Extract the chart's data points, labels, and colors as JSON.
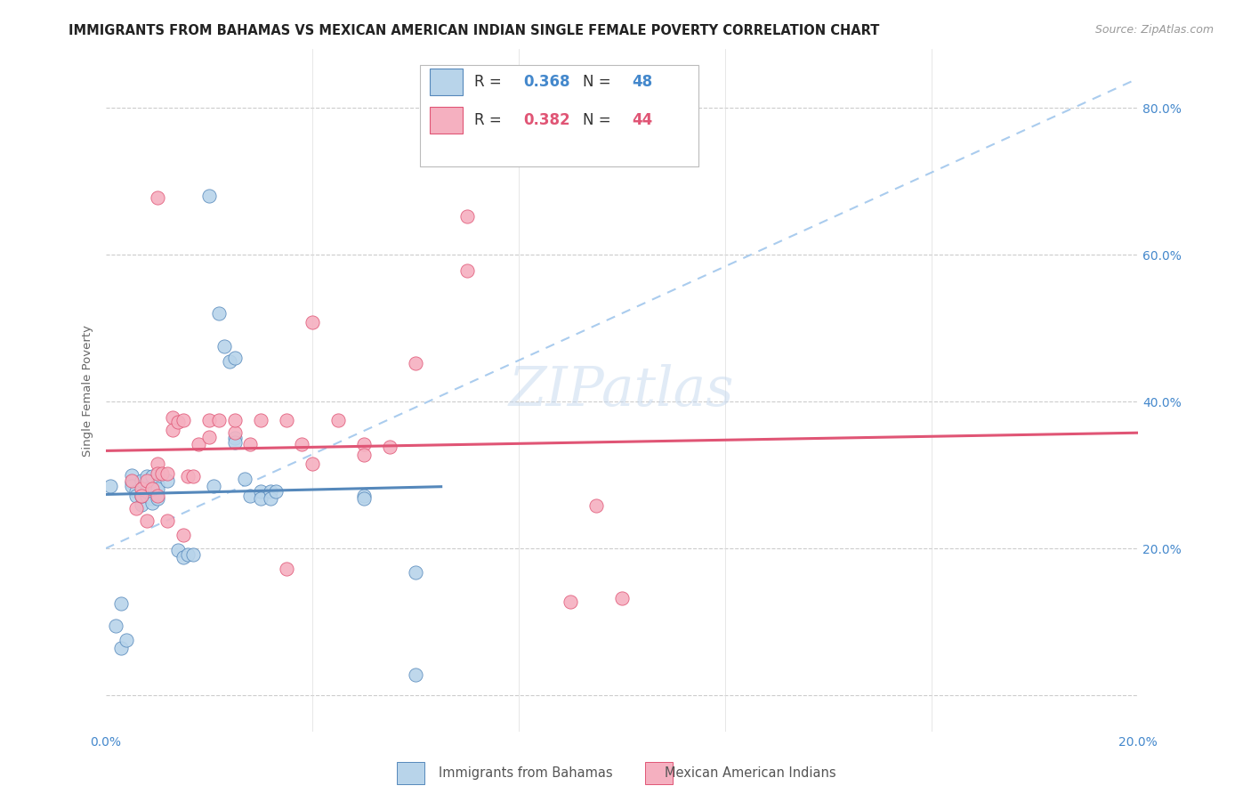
{
  "title": "IMMIGRANTS FROM BAHAMAS VS MEXICAN AMERICAN INDIAN SINGLE FEMALE POVERTY CORRELATION CHART",
  "source": "Source: ZipAtlas.com",
  "ylabel": "Single Female Poverty",
  "xlim": [
    0.0,
    0.2
  ],
  "ylim": [
    -0.05,
    0.88
  ],
  "yticks": [
    0.0,
    0.2,
    0.4,
    0.6,
    0.8
  ],
  "ytick_labels": [
    "",
    "20.0%",
    "40.0%",
    "60.0%",
    "80.0%"
  ],
  "xticks": [
    0.0,
    0.04,
    0.08,
    0.12,
    0.16,
    0.2
  ],
  "xtick_labels": [
    "0.0%",
    "",
    "",
    "",
    "",
    "20.0%"
  ],
  "legend_blue_r": "0.368",
  "legend_blue_n": "48",
  "legend_pink_r": "0.382",
  "legend_pink_n": "44",
  "blue_color": "#b8d4ea",
  "pink_color": "#f5b0c0",
  "blue_line_color": "#5588bb",
  "pink_line_color": "#e05575",
  "dashed_line_color": "#aaccee",
  "watermark": "ZIPatlas",
  "blue_scatter": [
    [
      0.001,
      0.285
    ],
    [
      0.002,
      0.095
    ],
    [
      0.003,
      0.065
    ],
    [
      0.003,
      0.125
    ],
    [
      0.004,
      0.075
    ],
    [
      0.005,
      0.29
    ],
    [
      0.005,
      0.3
    ],
    [
      0.005,
      0.285
    ],
    [
      0.006,
      0.278
    ],
    [
      0.006,
      0.272
    ],
    [
      0.007,
      0.26
    ],
    [
      0.007,
      0.272
    ],
    [
      0.007,
      0.292
    ],
    [
      0.008,
      0.298
    ],
    [
      0.008,
      0.282
    ],
    [
      0.008,
      0.272
    ],
    [
      0.008,
      0.278
    ],
    [
      0.009,
      0.298
    ],
    [
      0.009,
      0.278
    ],
    [
      0.009,
      0.268
    ],
    [
      0.009,
      0.262
    ],
    [
      0.01,
      0.288
    ],
    [
      0.01,
      0.282
    ],
    [
      0.01,
      0.268
    ],
    [
      0.012,
      0.292
    ],
    [
      0.014,
      0.198
    ],
    [
      0.015,
      0.188
    ],
    [
      0.016,
      0.192
    ],
    [
      0.017,
      0.192
    ],
    [
      0.02,
      0.68
    ],
    [
      0.021,
      0.285
    ],
    [
      0.022,
      0.52
    ],
    [
      0.023,
      0.475
    ],
    [
      0.024,
      0.455
    ],
    [
      0.025,
      0.46
    ],
    [
      0.025,
      0.35
    ],
    [
      0.025,
      0.345
    ],
    [
      0.027,
      0.295
    ],
    [
      0.028,
      0.272
    ],
    [
      0.03,
      0.278
    ],
    [
      0.03,
      0.268
    ],
    [
      0.032,
      0.278
    ],
    [
      0.032,
      0.268
    ],
    [
      0.033,
      0.278
    ],
    [
      0.05,
      0.272
    ],
    [
      0.05,
      0.268
    ],
    [
      0.06,
      0.168
    ],
    [
      0.06,
      0.028
    ]
  ],
  "pink_scatter": [
    [
      0.005,
      0.292
    ],
    [
      0.006,
      0.255
    ],
    [
      0.007,
      0.282
    ],
    [
      0.007,
      0.272
    ],
    [
      0.008,
      0.292
    ],
    [
      0.008,
      0.238
    ],
    [
      0.009,
      0.282
    ],
    [
      0.01,
      0.272
    ],
    [
      0.01,
      0.315
    ],
    [
      0.01,
      0.302
    ],
    [
      0.01,
      0.678
    ],
    [
      0.011,
      0.302
    ],
    [
      0.012,
      0.302
    ],
    [
      0.012,
      0.238
    ],
    [
      0.013,
      0.378
    ],
    [
      0.013,
      0.362
    ],
    [
      0.014,
      0.372
    ],
    [
      0.015,
      0.375
    ],
    [
      0.015,
      0.218
    ],
    [
      0.016,
      0.298
    ],
    [
      0.017,
      0.298
    ],
    [
      0.018,
      0.342
    ],
    [
      0.02,
      0.352
    ],
    [
      0.02,
      0.375
    ],
    [
      0.022,
      0.375
    ],
    [
      0.025,
      0.358
    ],
    [
      0.025,
      0.375
    ],
    [
      0.028,
      0.342
    ],
    [
      0.03,
      0.375
    ],
    [
      0.035,
      0.375
    ],
    [
      0.035,
      0.172
    ],
    [
      0.038,
      0.342
    ],
    [
      0.04,
      0.315
    ],
    [
      0.04,
      0.508
    ],
    [
      0.045,
      0.375
    ],
    [
      0.05,
      0.342
    ],
    [
      0.05,
      0.328
    ],
    [
      0.055,
      0.338
    ],
    [
      0.06,
      0.452
    ],
    [
      0.07,
      0.578
    ],
    [
      0.07,
      0.652
    ],
    [
      0.09,
      0.128
    ],
    [
      0.095,
      0.258
    ],
    [
      0.1,
      0.132
    ]
  ],
  "title_fontsize": 10.5,
  "source_fontsize": 9,
  "axis_label_fontsize": 9.5,
  "tick_fontsize": 10,
  "legend_fontsize": 12
}
